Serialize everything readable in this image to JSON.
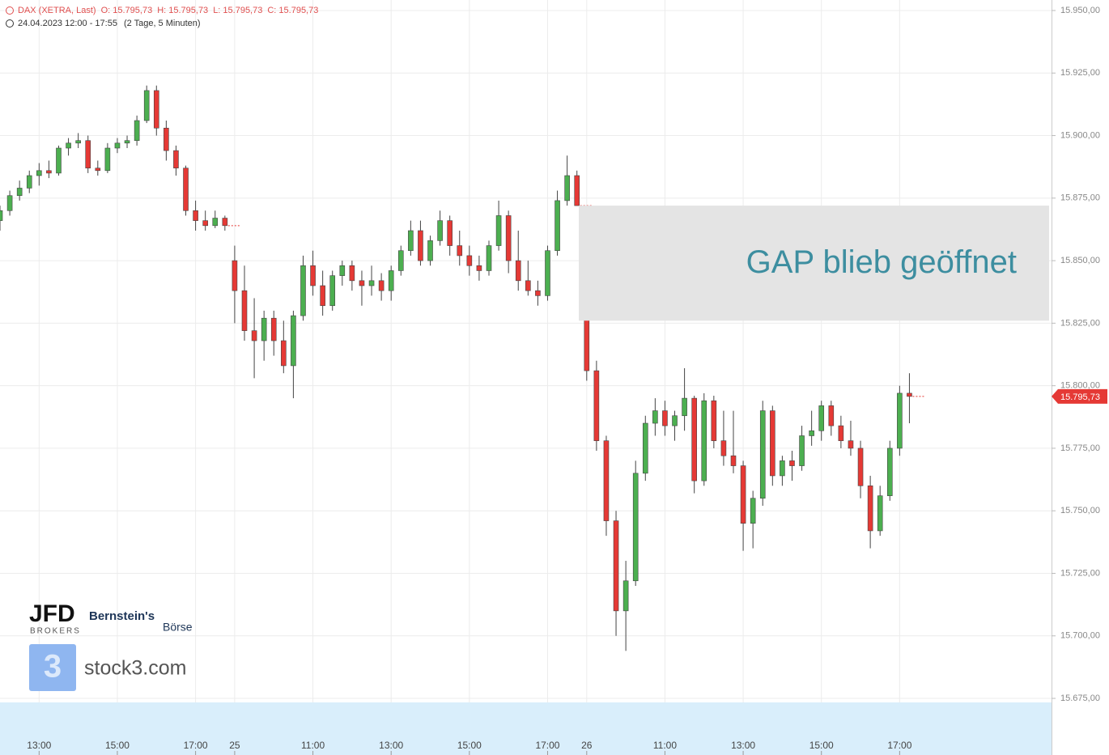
{
  "chart_data": {
    "type": "candlestick",
    "title": "DAX (XETRA, Last)",
    "ohlc_header": [
      "O: 15.795,73",
      "H: 15.795,73",
      "L: 15.795,73",
      "C: 15.795,73"
    ],
    "subtitle": "24.04.2023 12:00 - 17:55",
    "interval": "(2 Tage, 5 Minuten)",
    "ylim": [
      15673.4,
      15954.2
    ],
    "yticks": [
      {
        "value": 15675,
        "label": "15.675,00"
      },
      {
        "value": 15700,
        "label": "15.700,00"
      },
      {
        "value": 15725,
        "label": "15.725,00"
      },
      {
        "value": 15750,
        "label": "15.750,00"
      },
      {
        "value": 15775,
        "label": "15.775,00"
      },
      {
        "value": 15800,
        "label": "15.800,00"
      },
      {
        "value": 15825,
        "label": "15.825,00"
      },
      {
        "value": 15850,
        "label": "15.850,00"
      },
      {
        "value": 15875,
        "label": "15.875,00"
      },
      {
        "value": 15900,
        "label": "15.900,00"
      },
      {
        "value": 15925,
        "label": "15.925,00"
      },
      {
        "value": 15950,
        "label": "15.950,00"
      }
    ],
    "xticks": [
      {
        "value": 4,
        "label": "13:00"
      },
      {
        "value": 12,
        "label": "15:00"
      },
      {
        "value": 20,
        "label": "17:00"
      },
      {
        "value": 24,
        "label": "25"
      },
      {
        "value": 32,
        "label": "11:00"
      },
      {
        "value": 40,
        "label": "13:00"
      },
      {
        "value": 48,
        "label": "15:00"
      },
      {
        "value": 56,
        "label": "17:00"
      },
      {
        "value": 60,
        "label": "26"
      },
      {
        "value": 68,
        "label": "11:00"
      },
      {
        "value": 76,
        "label": "13:00"
      },
      {
        "value": 84,
        "label": "15:00"
      },
      {
        "value": 92,
        "label": "17:00"
      }
    ],
    "up_color": "#4caf50",
    "down_color": "#e53935",
    "grid": true,
    "candles": [
      [
        15866,
        15872,
        15862,
        15870
      ],
      [
        15870,
        15878,
        15868,
        15876
      ],
      [
        15876,
        15882,
        15874,
        15879
      ],
      [
        15879,
        15886,
        15877,
        15884
      ],
      [
        15884,
        15889,
        15880,
        15886
      ],
      [
        15886,
        15890,
        15883,
        15885
      ],
      [
        15885,
        15896,
        15884,
        15895
      ],
      [
        15895,
        15899,
        15892,
        15897
      ],
      [
        15897,
        15901,
        15895,
        15898
      ],
      [
        15898,
        15900,
        15885,
        15887
      ],
      [
        15887,
        15890,
        15884,
        15886
      ],
      [
        15886,
        15897,
        15885,
        15895
      ],
      [
        15895,
        15899,
        15893,
        15897
      ],
      [
        15897,
        15900,
        15895,
        15898
      ],
      [
        15898,
        15908,
        15896,
        15906
      ],
      [
        15906,
        15920,
        15905,
        15918
      ],
      [
        15918,
        15920,
        15900,
        15903
      ],
      [
        15903,
        15906,
        15890,
        15894
      ],
      [
        15894,
        15896,
        15884,
        15887
      ],
      [
        15887,
        15888,
        15868,
        15870
      ],
      [
        15870,
        15874,
        15862,
        15866
      ],
      [
        15866,
        15870,
        15862,
        15864
      ],
      [
        15864,
        15870,
        15863,
        15867
      ],
      [
        15867,
        15868,
        15862,
        15864
      ],
      [
        15850,
        15856,
        15825,
        15838
      ],
      [
        15838,
        15848,
        15818,
        15822
      ],
      [
        15822,
        15835,
        15803,
        15818
      ],
      [
        15818,
        15830,
        15810,
        15827
      ],
      [
        15827,
        15830,
        15812,
        15818
      ],
      [
        15818,
        15826,
        15805,
        15808
      ],
      [
        15808,
        15830,
        15795,
        15828
      ],
      [
        15828,
        15852,
        15826,
        15848
      ],
      [
        15848,
        15854,
        15836,
        15840
      ],
      [
        15840,
        15846,
        15828,
        15832
      ],
      [
        15832,
        15846,
        15830,
        15844
      ],
      [
        15844,
        15850,
        15840,
        15848
      ],
      [
        15848,
        15850,
        15838,
        15842
      ],
      [
        15842,
        15846,
        15832,
        15840
      ],
      [
        15840,
        15848,
        15836,
        15842
      ],
      [
        15842,
        15845,
        15834,
        15838
      ],
      [
        15838,
        15848,
        15834,
        15846
      ],
      [
        15846,
        15856,
        15844,
        15854
      ],
      [
        15854,
        15866,
        15852,
        15862
      ],
      [
        15862,
        15866,
        15848,
        15850
      ],
      [
        15850,
        15860,
        15848,
        15858
      ],
      [
        15858,
        15870,
        15856,
        15866
      ],
      [
        15866,
        15868,
        15852,
        15856
      ],
      [
        15856,
        15862,
        15848,
        15852
      ],
      [
        15852,
        15856,
        15844,
        15848
      ],
      [
        15848,
        15852,
        15842,
        15846
      ],
      [
        15846,
        15858,
        15844,
        15856
      ],
      [
        15856,
        15874,
        15854,
        15868
      ],
      [
        15868,
        15870,
        15845,
        15850
      ],
      [
        15850,
        15862,
        15838,
        15842
      ],
      [
        15842,
        15850,
        15836,
        15838
      ],
      [
        15838,
        15842,
        15832,
        15836
      ],
      [
        15836,
        15856,
        15834,
        15854
      ],
      [
        15854,
        15878,
        15852,
        15874
      ],
      [
        15874,
        15892,
        15872,
        15884
      ],
      [
        15884,
        15886,
        15872,
        15872
      ],
      [
        15828,
        15830,
        15802,
        15806
      ],
      [
        15806,
        15810,
        15774,
        15778
      ],
      [
        15778,
        15780,
        15740,
        15746
      ],
      [
        15746,
        15750,
        15700,
        15710
      ],
      [
        15710,
        15730,
        15694,
        15722
      ],
      [
        15722,
        15770,
        15720,
        15765
      ],
      [
        15765,
        15788,
        15762,
        15785
      ],
      [
        15785,
        15795,
        15780,
        15790
      ],
      [
        15790,
        15794,
        15780,
        15784
      ],
      [
        15784,
        15790,
        15778,
        15788
      ],
      [
        15788,
        15807,
        15782,
        15795
      ],
      [
        15795,
        15796,
        15757,
        15762
      ],
      [
        15762,
        15797,
        15760,
        15794
      ],
      [
        15794,
        15796,
        15775,
        15778
      ],
      [
        15778,
        15790,
        15768,
        15772
      ],
      [
        15772,
        15790,
        15765,
        15768
      ],
      [
        15768,
        15770,
        15734,
        15745
      ],
      [
        15745,
        15758,
        15735,
        15755
      ],
      [
        15755,
        15794,
        15752,
        15790
      ],
      [
        15790,
        15792,
        15760,
        15764
      ],
      [
        15764,
        15772,
        15760,
        15770
      ],
      [
        15770,
        15774,
        15762,
        15768
      ],
      [
        15768,
        15784,
        15766,
        15780
      ],
      [
        15780,
        15790,
        15776,
        15782
      ],
      [
        15782,
        15794,
        15778,
        15792
      ],
      [
        15792,
        15794,
        15780,
        15784
      ],
      [
        15784,
        15788,
        15775,
        15778
      ],
      [
        15778,
        15786,
        15772,
        15775
      ],
      [
        15775,
        15778,
        15755,
        15760
      ],
      [
        15760,
        15764,
        15735,
        15742
      ],
      [
        15742,
        15760,
        15740,
        15756
      ],
      [
        15756,
        15778,
        15754,
        15775
      ],
      [
        15775,
        15800,
        15772,
        15797
      ],
      [
        15797,
        15805,
        15785,
        15795.73
      ]
    ],
    "last_price": {
      "value": 15795.73,
      "label": "15.795,73"
    },
    "gap": {
      "label": "GAP blieb geöffnet",
      "top": 15872,
      "bottom": 15826
    },
    "logos": {
      "jfd": "JFD",
      "jfd_sub": "BROKERS",
      "bernstein": "Bernstein's",
      "boerse": "Börse",
      "stock3": "stock3.com"
    }
  }
}
